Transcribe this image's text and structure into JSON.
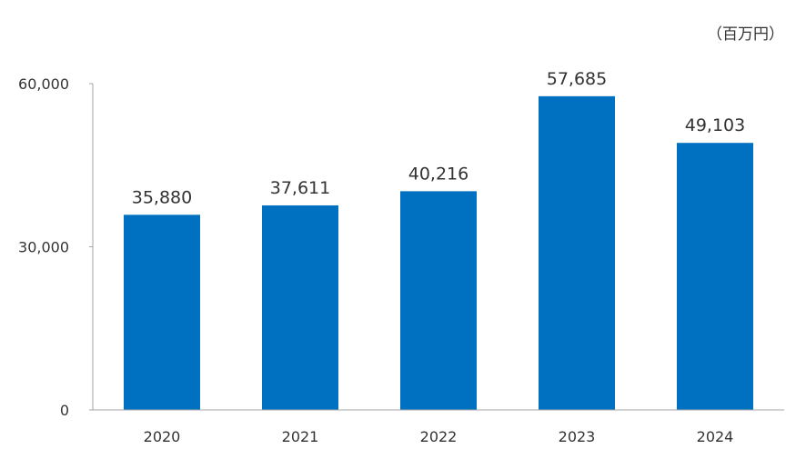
{
  "chart_data": {
    "type": "bar",
    "unit": "（百万円）",
    "categories": [
      "2020",
      "2021",
      "2022",
      "2023",
      "2024"
    ],
    "values": [
      35880,
      37611,
      40216,
      57685,
      49103
    ],
    "value_labels": [
      "35,880",
      "37,611",
      "40,216",
      "57,685",
      "49,103"
    ],
    "yticks": [
      0,
      30000,
      60000
    ],
    "ytick_labels": [
      "0",
      "30,000",
      "60,000"
    ],
    "ylim": [
      0,
      60000
    ],
    "grid": false,
    "bar_color": "#0070C0",
    "axis_color": "#A6A6A6"
  }
}
